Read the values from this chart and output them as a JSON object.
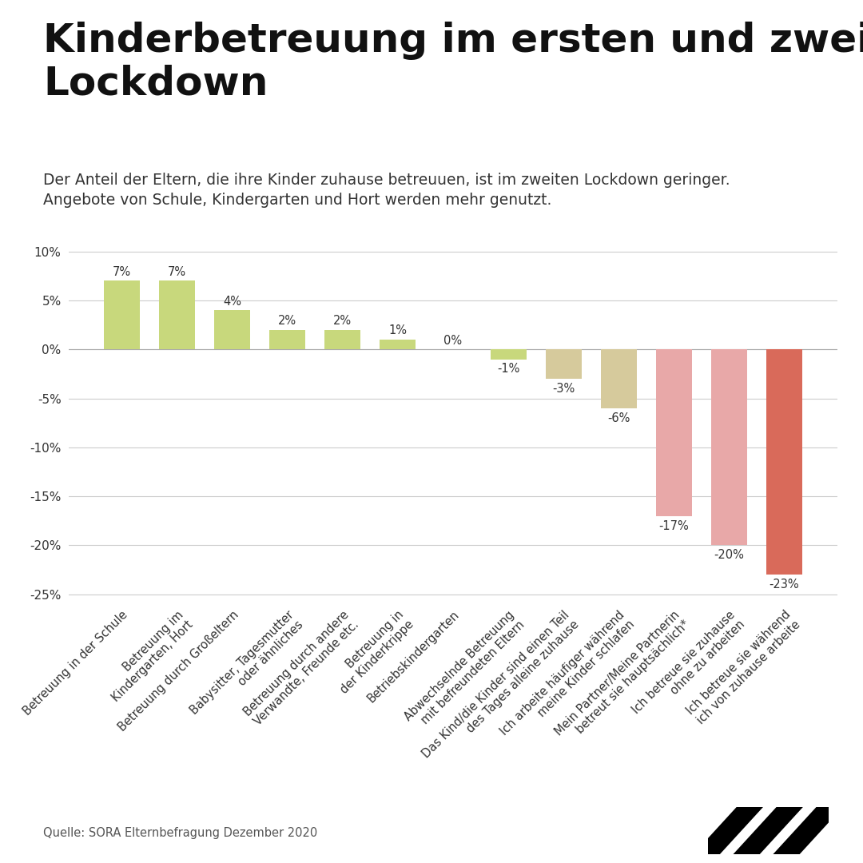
{
  "title": "Kinderbetreuung im ersten und zweiten\nLockdown",
  "subtitle": "Der Anteil der Eltern, die ihre Kinder zuhause betreuuen, ist im zweiten Lockdown geringer.\nAngebote von Schule, Kindergarten und Hort werden mehr genutzt.",
  "source": "Quelle: SORA Elternbefragung Dezember 2020",
  "categories": [
    "Betreuung in der Schule",
    "Betreuung im\nKindergarten, Hort",
    "Betreuung durch Großeltern",
    "Babysitter, Tagesmutter\noder ähnliches",
    "Betreuung durch andere\nVerwandte, Freunde etc.",
    "Betreuung in\nder Kinderkrippe",
    "Betriebskindergarten",
    "Abwechselnde Betreuung\nmit befreundeten Eltern",
    "Das Kind/die Kinder sind einen Teil\ndes Tages alleine zuhause",
    "Ich arbeite häufiger während\nmeine Kinder schlafen",
    "Mein Partner/Meine Partnerin\nbetreut sie hauptsächlich*",
    "Ich betreue sie zuhause\nohne zu arbeiten",
    "Ich betreue sie während\nich von zuhause arbeite"
  ],
  "values": [
    7,
    7,
    4,
    2,
    2,
    1,
    0,
    -1,
    -3,
    -6,
    -17,
    -20,
    -23
  ],
  "bar_colors": [
    "#c8d87c",
    "#c8d87c",
    "#c8d87c",
    "#c8d87c",
    "#c8d87c",
    "#c8d87c",
    "#c8d87c",
    "#c8d87c",
    "#d6ca9c",
    "#d6ca9c",
    "#e8a8a8",
    "#e8a8a8",
    "#d96a5a"
  ],
  "ylim": [
    -26,
    11
  ],
  "yticks": [
    10,
    5,
    0,
    -5,
    -10,
    -15,
    -20,
    -25
  ],
  "background_color": "#ffffff",
  "grid_color": "#cccccc",
  "title_fontsize": 36,
  "subtitle_fontsize": 13.5,
  "label_fontsize": 10.5,
  "value_fontsize": 10.5
}
